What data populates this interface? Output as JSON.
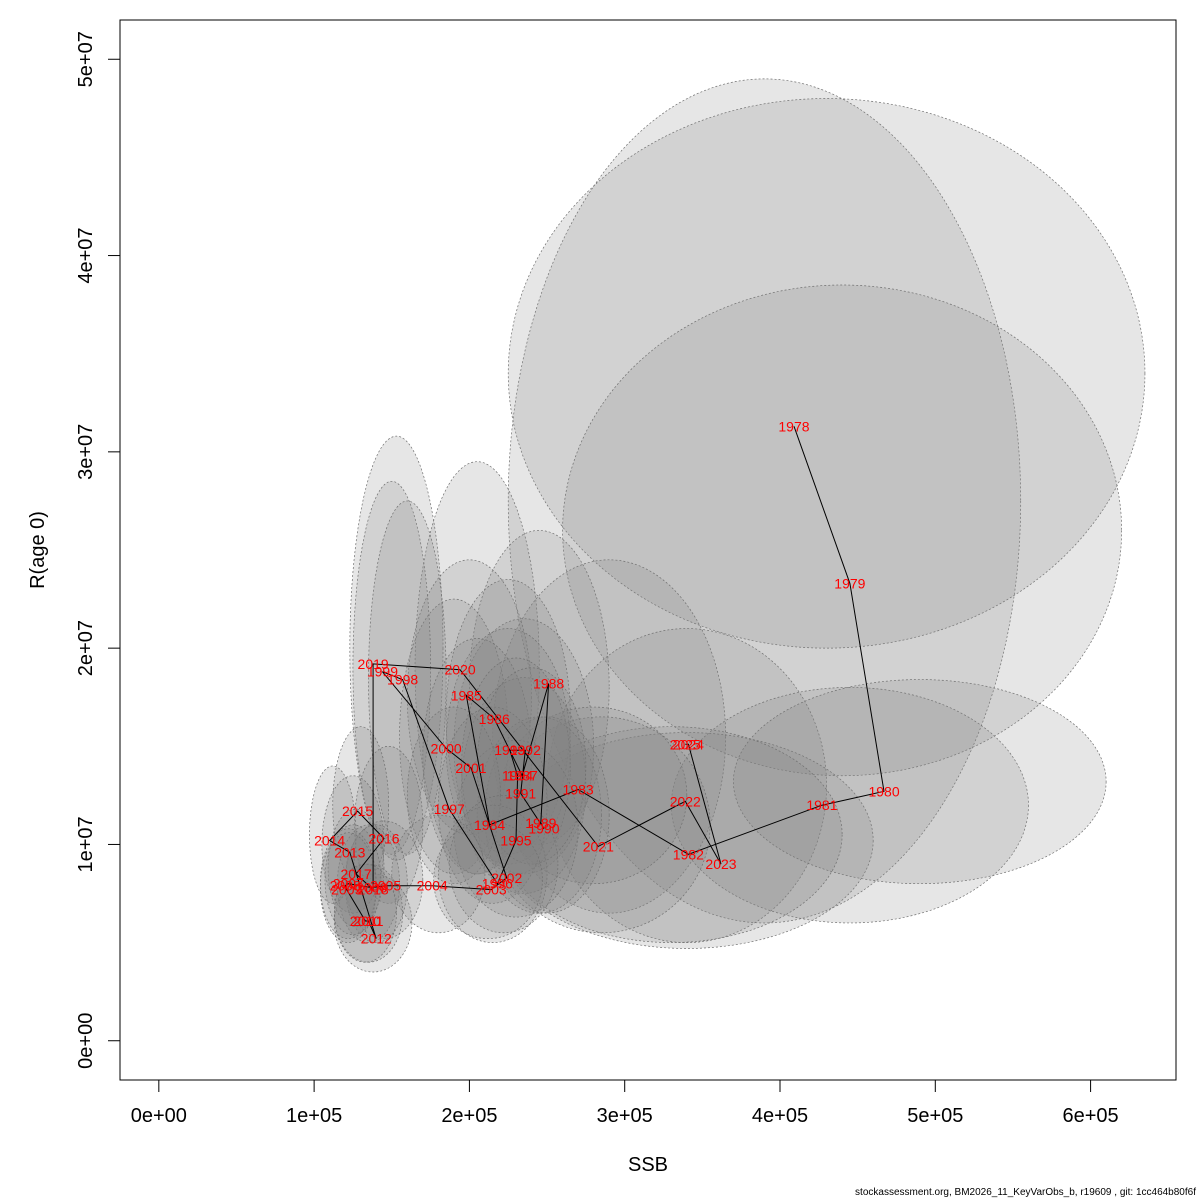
{
  "footer": "stockassessment.org, BM2026_11_KeyVarObs_b, r19609 , git: 1cc464b80f6f",
  "chart_data": {
    "type": "scatter",
    "title": "",
    "xlabel": "SSB",
    "ylabel": "R(age 0)",
    "xlim": [
      -25000,
      655000
    ],
    "ylim": [
      -2000000,
      52000000
    ],
    "xticks": [
      0,
      100000,
      200000,
      300000,
      400000,
      500000,
      600000
    ],
    "xtick_labels": [
      "0e+00",
      "1e+05",
      "2e+05",
      "3e+05",
      "4e+05",
      "5e+05",
      "6e+05"
    ],
    "yticks": [
      0,
      10000000,
      20000000,
      30000000,
      40000000,
      50000000
    ],
    "ytick_labels": [
      "0e+00",
      "1e+07",
      "2e+07",
      "3e+07",
      "4e+07",
      "5e+07"
    ],
    "grid": false,
    "label_color": "#ff0000",
    "line_color": "#000000",
    "ellipse_fill": "#808080",
    "ellipse_stroke": "#707070",
    "points": [
      {
        "year": "1978",
        "ssb": 409000,
        "r": 31300000,
        "cx": 430000,
        "cy": 34000000,
        "rx": 205000,
        "ry": 14000000
      },
      {
        "year": "1979",
        "ssb": 445000,
        "r": 23300000,
        "cx": 440000,
        "cy": 26000000,
        "rx": 180000,
        "ry": 12500000
      },
      {
        "year": "1980",
        "ssb": 467000,
        "r": 12700000,
        "cx": 490000,
        "cy": 13200000,
        "rx": 120000,
        "ry": 5200000
      },
      {
        "year": "1981",
        "ssb": 427000,
        "r": 12000000,
        "cx": 445000,
        "cy": 12000000,
        "rx": 115000,
        "ry": 6000000
      },
      {
        "year": "1982",
        "ssb": 341000,
        "r": 9500000,
        "cx": 340000,
        "cy": 10200000,
        "rx": 120000,
        "ry": 5500000
      },
      {
        "year": "1983",
        "ssb": 270000,
        "r": 12800000,
        "cx": 280000,
        "cy": 12500000,
        "rx": 60000,
        "ry": 4500000
      },
      {
        "year": "1984",
        "ssb": 213000,
        "r": 11000000,
        "cx": 215000,
        "cy": 12000000,
        "rx": 35000,
        "ry": 5000000
      },
      {
        "year": "1985",
        "ssb": 198000,
        "r": 17600000,
        "cx": 200000,
        "cy": 17500000,
        "rx": 40000,
        "ry": 7000000
      },
      {
        "year": "1986",
        "ssb": 216000,
        "r": 16400000,
        "cx": 225000,
        "cy": 16500000,
        "rx": 40000,
        "ry": 7000000
      },
      {
        "year": "1987",
        "ssb": 234000,
        "r": 13500000,
        "cx": 240000,
        "cy": 14000000,
        "rx": 35000,
        "ry": 5000000
      },
      {
        "year": "1988",
        "ssb": 251000,
        "r": 18200000,
        "cx": 245000,
        "cy": 18000000,
        "rx": 45000,
        "ry": 8000000
      },
      {
        "year": "1989",
        "ssb": 246000,
        "r": 11100000,
        "cx": 245000,
        "cy": 11500000,
        "rx": 40000,
        "ry": 5000000
      },
      {
        "year": "1990",
        "ssb": 248000,
        "r": 10800000,
        "cx": 250000,
        "cy": 11500000,
        "rx": 40000,
        "ry": 5000000
      },
      {
        "year": "1991",
        "ssb": 233000,
        "r": 12600000,
        "cx": 235000,
        "cy": 13000000,
        "rx": 40000,
        "ry": 5500000
      },
      {
        "year": "1992",
        "ssb": 236000,
        "r": 14800000,
        "cx": 235000,
        "cy": 15000000,
        "rx": 45000,
        "ry": 6500000
      },
      {
        "year": "1993",
        "ssb": 226000,
        "r": 14800000,
        "cx": 225000,
        "cy": 15000000,
        "rx": 40000,
        "ry": 6000000
      },
      {
        "year": "1994",
        "ssb": 231000,
        "r": 13500000,
        "cx": 230000,
        "cy": 14000000,
        "rx": 35000,
        "ry": 5500000
      },
      {
        "year": "1995",
        "ssb": 230000,
        "r": 10200000,
        "cx": 230000,
        "cy": 10800000,
        "rx": 40000,
        "ry": 4500000
      },
      {
        "year": "1996",
        "ssb": 218000,
        "r": 8000000,
        "cx": 215000,
        "cy": 8500000,
        "rx": 35000,
        "ry": 3500000
      },
      {
        "year": "1997",
        "ssb": 187000,
        "r": 11800000,
        "cx": 190000,
        "cy": 12500000,
        "rx": 30000,
        "ry": 4500000
      },
      {
        "year": "1998",
        "ssb": 157000,
        "r": 18400000,
        "cx": 160000,
        "cy": 18500000,
        "rx": 25000,
        "ry": 9000000
      },
      {
        "year": "1999",
        "ssb": 144000,
        "r": 18800000,
        "cx": 150000,
        "cy": 19000000,
        "rx": 25000,
        "ry": 9500000
      },
      {
        "year": "2000",
        "ssb": 185000,
        "r": 14900000,
        "cx": 190000,
        "cy": 15500000,
        "rx": 35000,
        "ry": 7000000
      },
      {
        "year": "2001",
        "ssb": 201000,
        "r": 13900000,
        "cx": 205000,
        "cy": 14500000,
        "rx": 35000,
        "ry": 6000000
      },
      {
        "year": "2002",
        "ssb": 224000,
        "r": 8300000,
        "cx": 222000,
        "cy": 9000000,
        "rx": 35000,
        "ry": 3500000
      },
      {
        "year": "2003",
        "ssb": 214000,
        "r": 7700000,
        "cx": 212000,
        "cy": 8200000,
        "rx": 35000,
        "ry": 3000000
      },
      {
        "year": "2004",
        "ssb": 176000,
        "r": 7900000,
        "cx": 180000,
        "cy": 8500000,
        "rx": 30000,
        "ry": 3000000
      },
      {
        "year": "2005",
        "ssb": 146000,
        "r": 7900000,
        "cx": 145000,
        "cy": 8200000,
        "rx": 25000,
        "ry": 3000000
      },
      {
        "year": "2006",
        "ssb": 137000,
        "r": 7800000,
        "cx": 135000,
        "cy": 8000000,
        "rx": 20000,
        "ry": 3000000
      },
      {
        "year": "2007",
        "ssb": 122000,
        "r": 8000000,
        "cx": 125000,
        "cy": 8200000,
        "rx": 18000,
        "ry": 2800000
      },
      {
        "year": "2008",
        "ssb": 120000,
        "r": 7900000,
        "cx": 122000,
        "cy": 8000000,
        "rx": 18000,
        "ry": 2800000
      },
      {
        "year": "2009",
        "ssb": 121000,
        "r": 7700000,
        "cx": 122000,
        "cy": 7800000,
        "rx": 18000,
        "ry": 2800000
      },
      {
        "year": "2010",
        "ssb": 133000,
        "r": 6100000,
        "cx": 133000,
        "cy": 6500000,
        "rx": 20000,
        "ry": 2500000
      },
      {
        "year": "2011",
        "ssb": 135000,
        "r": 6100000,
        "cx": 135000,
        "cy": 6500000,
        "rx": 22000,
        "ry": 2500000
      },
      {
        "year": "2012",
        "ssb": 140000,
        "r": 5200000,
        "cx": 138000,
        "cy": 6000000,
        "rx": 25000,
        "ry": 2500000
      },
      {
        "year": "2013",
        "ssb": 123000,
        "r": 9600000,
        "cx": 125000,
        "cy": 10000000,
        "rx": 20000,
        "ry": 3500000
      },
      {
        "year": "2014",
        "ssb": 110000,
        "r": 10200000,
        "cx": 112000,
        "cy": 10500000,
        "rx": 15000,
        "ry": 3500000
      },
      {
        "year": "2015",
        "ssb": 128000,
        "r": 11700000,
        "cx": 130000,
        "cy": 12000000,
        "rx": 18000,
        "ry": 4000000
      },
      {
        "year": "2016",
        "ssb": 145000,
        "r": 10300000,
        "cx": 148000,
        "cy": 11000000,
        "rx": 22000,
        "ry": 4000000
      },
      {
        "year": "2017",
        "ssb": 127000,
        "r": 8500000,
        "cx": 127000,
        "cy": 8800000,
        "rx": 18000,
        "ry": 3000000
      },
      {
        "year": "2018",
        "ssb": 138000,
        "r": 7700000,
        "cx": 140000,
        "cy": 8000000,
        "rx": 20000,
        "ry": 3000000
      },
      {
        "year": "2019",
        "ssb": 138000,
        "r": 19200000,
        "cx": 153000,
        "cy": 20000000,
        "rx": 30000,
        "ry": 10800000
      },
      {
        "year": "2020",
        "ssb": 194000,
        "r": 18900000,
        "cx": 205000,
        "cy": 19000000,
        "rx": 40000,
        "ry": 10500000
      },
      {
        "year": "2021",
        "ssb": 283000,
        "r": 9900000,
        "cx": 285000,
        "cy": 11000000,
        "rx": 70000,
        "ry": 5500000
      },
      {
        "year": "2022",
        "ssb": 339000,
        "r": 12200000,
        "cx": 340000,
        "cy": 13000000,
        "rx": 90000,
        "ry": 8000000
      },
      {
        "year": "2023",
        "ssb": 362000,
        "r": 9000000,
        "cx": 330000,
        "cy": 10500000,
        "rx": 110000,
        "ry": 5500000
      },
      {
        "year": "2024",
        "ssb": 341000,
        "r": 15100000,
        "cx": 390000,
        "cy": 27500000,
        "rx": 165000,
        "ry": 21500000
      },
      {
        "year": "2025",
        "ssb": 339000,
        "r": 15100000,
        "cx": 290000,
        "cy": 15500000,
        "rx": 75000,
        "ry": 9000000
      }
    ]
  }
}
